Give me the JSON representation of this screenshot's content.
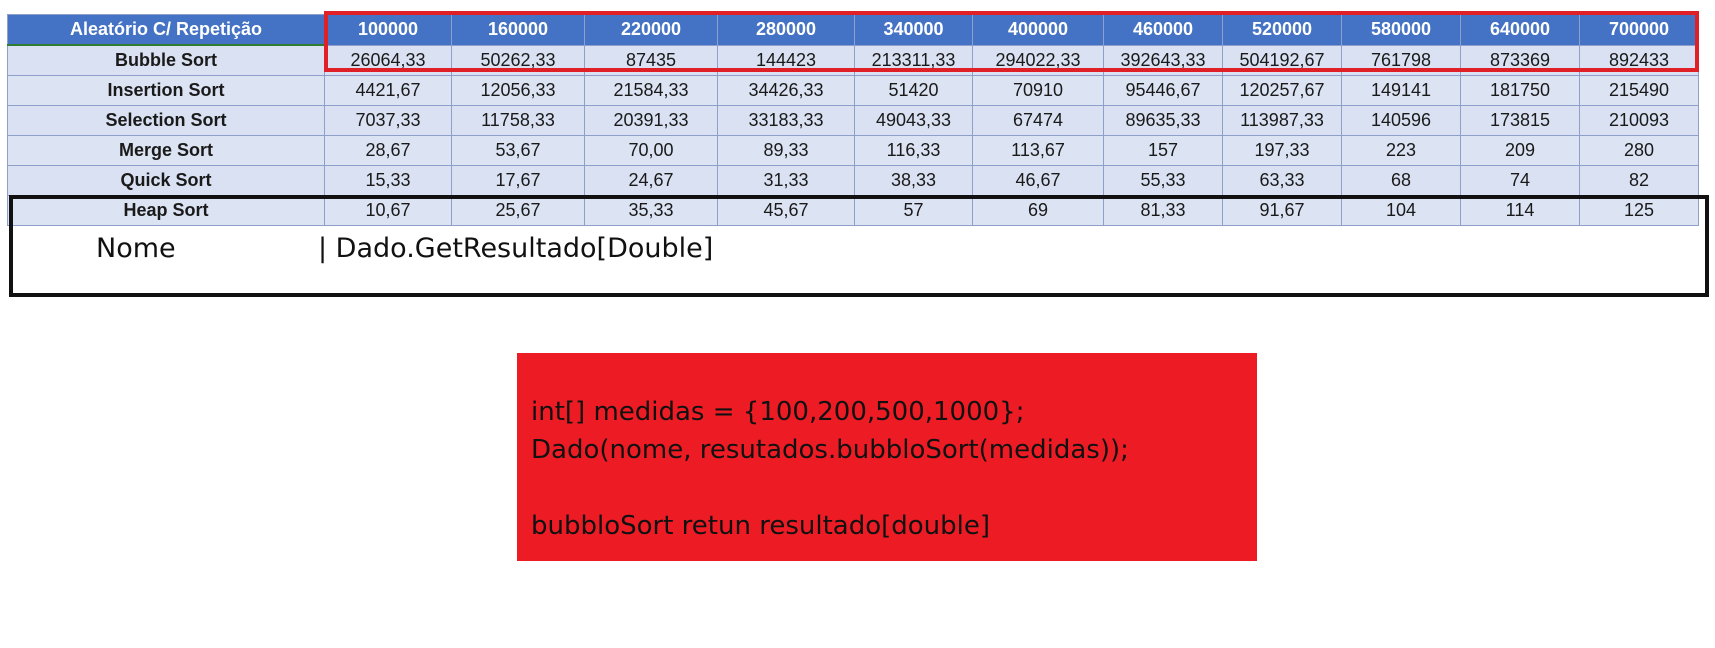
{
  "table": {
    "corner": "Aleatório C/ Repetição",
    "columns": [
      "100000",
      "160000",
      "220000",
      "280000",
      "340000",
      "400000",
      "460000",
      "520000",
      "580000",
      "640000",
      "700000"
    ],
    "rows": [
      {
        "name": "Bubble Sort",
        "values": [
          "26064,33",
          "50262,33",
          "87435",
          "144423",
          "213311,33",
          "294022,33",
          "392643,33",
          "504192,67",
          "761798",
          "873369",
          "892433"
        ]
      },
      {
        "name": "Insertion Sort",
        "values": [
          "4421,67",
          "12056,33",
          "21584,33",
          "34426,33",
          "51420",
          "70910",
          "95446,67",
          "120257,67",
          "149141",
          "181750",
          "215490"
        ]
      },
      {
        "name": "Selection Sort",
        "values": [
          "7037,33",
          "11758,33",
          "20391,33",
          "33183,33",
          "49043,33",
          "67474",
          "89635,33",
          "113987,33",
          "140596",
          "173815",
          "210093"
        ]
      },
      {
        "name": "Merge Sort",
        "values": [
          "28,67",
          "53,67",
          "70,00",
          "89,33",
          "116,33",
          "113,67",
          "157",
          "197,33",
          "223",
          "209",
          "280"
        ]
      },
      {
        "name": "Quick Sort",
        "values": [
          "15,33",
          "17,67",
          "24,67",
          "31,33",
          "38,33",
          "46,67",
          "55,33",
          "63,33",
          "68",
          "74",
          "82"
        ]
      },
      {
        "name": "Heap Sort",
        "values": [
          "10,67",
          "25,67",
          "35,33",
          "45,67",
          "57",
          "69",
          "81,33",
          "91,67",
          "104",
          "114",
          "125"
        ]
      }
    ]
  },
  "format": {
    "name_label": "Nome",
    "result_label": "| Dado.GetResultado[Double]"
  },
  "code": {
    "lines": [
      "int[] medidas = {100,200,500,1000};",
      "Dado(nome, resutados.bubbloSort(medidas));",
      "",
      "bubbloSort retun resultado[double]"
    ]
  },
  "colors": {
    "header_blue": "#4472c4",
    "cell_fill": "#d9e1f2",
    "highlight_red": "#e02027",
    "code_box_red": "#ed1c24"
  }
}
